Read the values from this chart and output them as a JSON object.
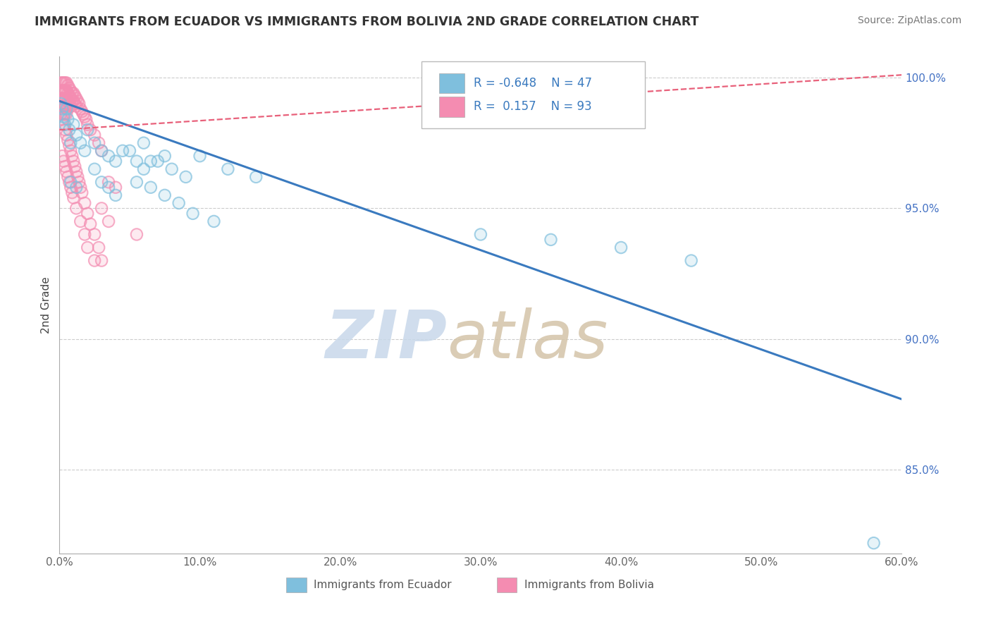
{
  "title": "IMMIGRANTS FROM ECUADOR VS IMMIGRANTS FROM BOLIVIA 2ND GRADE CORRELATION CHART",
  "source": "Source: ZipAtlas.com",
  "ylabel": "2nd Grade",
  "legend_labels": [
    "Immigrants from Ecuador",
    "Immigrants from Bolivia"
  ],
  "ecuador_R": -0.648,
  "ecuador_N": 47,
  "bolivia_R": 0.157,
  "bolivia_N": 93,
  "ecuador_color": "#7fbfdd",
  "bolivia_color": "#f48cb1",
  "ecuador_line_color": "#3a7abf",
  "bolivia_line_color": "#e8607a",
  "xlim": [
    0.0,
    0.6
  ],
  "ylim": [
    0.818,
    1.008
  ],
  "yticks": [
    0.85,
    0.9,
    0.95,
    1.0
  ],
  "ytick_labels": [
    "85.0%",
    "90.0%",
    "95.0%",
    "100.0%"
  ],
  "xticks": [
    0.0,
    0.1,
    0.2,
    0.3,
    0.4,
    0.5,
    0.6
  ],
  "xtick_labels": [
    "0.0%",
    "10.0%",
    "20.0%",
    "30.0%",
    "40.0%",
    "50.0%",
    "60.0%"
  ],
  "ecuador_x": [
    0.001,
    0.002,
    0.003,
    0.004,
    0.005,
    0.006,
    0.007,
    0.008,
    0.01,
    0.012,
    0.015,
    0.018,
    0.02,
    0.025,
    0.03,
    0.035,
    0.04,
    0.05,
    0.06,
    0.07,
    0.08,
    0.09,
    0.1,
    0.12,
    0.14,
    0.06,
    0.075,
    0.055,
    0.045,
    0.065,
    0.008,
    0.012,
    0.025,
    0.03,
    0.035,
    0.04,
    0.055,
    0.065,
    0.075,
    0.085,
    0.095,
    0.11,
    0.3,
    0.35,
    0.4,
    0.45,
    0.58
  ],
  "ecuador_y": [
    0.99,
    0.988,
    0.985,
    0.982,
    0.988,
    0.984,
    0.98,
    0.975,
    0.982,
    0.978,
    0.975,
    0.972,
    0.98,
    0.975,
    0.972,
    0.97,
    0.968,
    0.972,
    0.965,
    0.968,
    0.965,
    0.962,
    0.97,
    0.965,
    0.962,
    0.975,
    0.97,
    0.968,
    0.972,
    0.968,
    0.96,
    0.958,
    0.965,
    0.96,
    0.958,
    0.955,
    0.96,
    0.958,
    0.955,
    0.952,
    0.948,
    0.945,
    0.94,
    0.938,
    0.935,
    0.93,
    0.822
  ],
  "bolivia_x": [
    0.001,
    0.001,
    0.001,
    0.002,
    0.002,
    0.002,
    0.002,
    0.003,
    0.003,
    0.003,
    0.003,
    0.003,
    0.004,
    0.004,
    0.004,
    0.004,
    0.004,
    0.005,
    0.005,
    0.005,
    0.005,
    0.005,
    0.006,
    0.006,
    0.006,
    0.006,
    0.007,
    0.007,
    0.007,
    0.008,
    0.008,
    0.008,
    0.009,
    0.009,
    0.01,
    0.01,
    0.011,
    0.011,
    0.012,
    0.012,
    0.013,
    0.014,
    0.015,
    0.016,
    0.017,
    0.018,
    0.019,
    0.02,
    0.022,
    0.025,
    0.028,
    0.03,
    0.001,
    0.002,
    0.003,
    0.004,
    0.005,
    0.006,
    0.007,
    0.008,
    0.009,
    0.01,
    0.011,
    0.012,
    0.013,
    0.014,
    0.015,
    0.016,
    0.018,
    0.02,
    0.022,
    0.025,
    0.028,
    0.03,
    0.035,
    0.04,
    0.002,
    0.003,
    0.004,
    0.005,
    0.006,
    0.007,
    0.008,
    0.009,
    0.01,
    0.012,
    0.015,
    0.018,
    0.02,
    0.025,
    0.03,
    0.035,
    0.055
  ],
  "bolivia_y": [
    0.998,
    0.995,
    0.992,
    0.998,
    0.995,
    0.992,
    0.989,
    0.998,
    0.995,
    0.992,
    0.989,
    0.986,
    0.998,
    0.995,
    0.992,
    0.989,
    0.986,
    0.998,
    0.995,
    0.992,
    0.989,
    0.986,
    0.997,
    0.994,
    0.991,
    0.988,
    0.996,
    0.993,
    0.99,
    0.995,
    0.992,
    0.989,
    0.994,
    0.991,
    0.994,
    0.991,
    0.993,
    0.99,
    0.992,
    0.989,
    0.991,
    0.99,
    0.988,
    0.987,
    0.986,
    0.985,
    0.984,
    0.982,
    0.98,
    0.978,
    0.975,
    0.972,
    0.986,
    0.984,
    0.982,
    0.98,
    0.978,
    0.976,
    0.974,
    0.972,
    0.97,
    0.968,
    0.966,
    0.964,
    0.962,
    0.96,
    0.958,
    0.956,
    0.952,
    0.948,
    0.944,
    0.94,
    0.935,
    0.93,
    0.96,
    0.958,
    0.97,
    0.968,
    0.966,
    0.964,
    0.962,
    0.96,
    0.958,
    0.956,
    0.954,
    0.95,
    0.945,
    0.94,
    0.935,
    0.93,
    0.95,
    0.945,
    0.94
  ],
  "ecuador_trend_x": [
    0.0,
    0.6
  ],
  "ecuador_trend_y": [
    0.991,
    0.877
  ],
  "bolivia_trend_x": [
    0.0,
    0.6
  ],
  "bolivia_trend_y": [
    0.98,
    1.001
  ]
}
